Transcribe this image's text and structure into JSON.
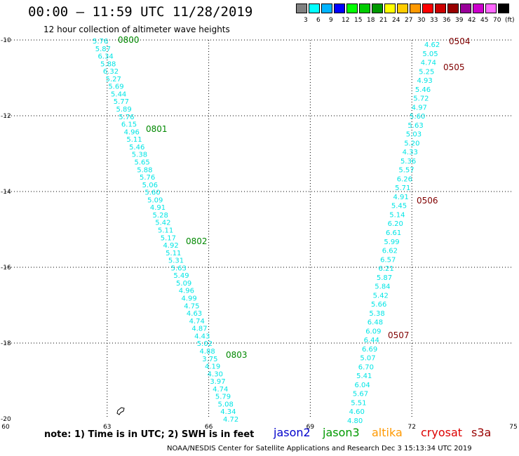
{
  "header": {
    "title": "00:00 – 11:59 UTC 11/28/2019",
    "subtitle": "12 hour collection of altimeter wave heights"
  },
  "legend": {
    "colors": [
      "#808080",
      "#00ffff",
      "#00b4ff",
      "#0000ff",
      "#00ff00",
      "#00cc00",
      "#009900",
      "#ffff00",
      "#ffcc00",
      "#ff9900",
      "#ff0000",
      "#cc0000",
      "#990000",
      "#990099",
      "#cc00cc",
      "#ff66ff",
      "#000000"
    ],
    "labels": [
      "3",
      "6",
      "9",
      "12",
      "15",
      "18",
      "21",
      "24",
      "27",
      "30",
      "33",
      "36",
      "39",
      "42",
      "45",
      "70"
    ],
    "unit": "(ft)"
  },
  "axes": {
    "lon_ticks": [
      "60",
      "63",
      "66",
      "69",
      "72",
      "75"
    ],
    "lat_ticks": [
      "-10",
      "-12",
      "-14",
      "-16",
      "-18",
      "-20"
    ]
  },
  "tracks": [
    {
      "color": "#00e5e5",
      "values": [
        "5.76",
        "5.87",
        "6.34",
        "5.88",
        "6.32",
        "5.27",
        "5.69",
        "5.44",
        "5.77",
        "5.89",
        "5.76",
        "6.15",
        "4.96",
        "5.11",
        "5.46",
        "5.38",
        "5.65",
        "5.88",
        "5.76",
        "5.06",
        "5.60",
        "5.09",
        "4.91",
        "5.28",
        "5.42",
        "5.11",
        "5.17",
        "4.92",
        "5.11",
        "5.31",
        "5.63",
        "5.49",
        "5.09",
        "4.96",
        "4.99",
        "4.75",
        "4.63",
        "4.74",
        "4.87",
        "4.43",
        "5.02",
        "4.88",
        "3.75",
        "4.19",
        "4.30",
        "3.97",
        "4.74",
        "5.79",
        "5.08",
        "4.34",
        "4.72"
      ]
    },
    {
      "color": "#00e5e5",
      "values": [
        "4.62",
        "5.05",
        "4.74",
        "5.25",
        "4.93",
        "5.46",
        "5.72",
        "4.97",
        "5.60",
        "5.63",
        "5.03",
        "5.20",
        "4.33",
        "5.36",
        "5.57",
        "6.26",
        "5.71",
        "4.91",
        "5.45",
        "5.14",
        "6.20",
        "6.61",
        "5.99",
        "6.62",
        "6.57",
        "6.21",
        "5.87",
        "5.84",
        "5.42",
        "5.66",
        "5.38",
        "6.48",
        "6.09",
        "6.44",
        "6.69",
        "5.07",
        "6.70",
        "5.41",
        "6.04",
        "5.67",
        "5.51",
        "4.60",
        "4.80"
      ]
    }
  ],
  "time_labels": [
    {
      "text": "0800",
      "color": "#008800"
    },
    {
      "text": "0801",
      "color": "#008800"
    },
    {
      "text": "0802",
      "color": "#008800"
    },
    {
      "text": "0803",
      "color": "#008800"
    },
    {
      "text": "0504",
      "color": "#800000"
    },
    {
      "text": "0505",
      "color": "#800000"
    },
    {
      "text": "0506",
      "color": "#800000"
    },
    {
      "text": "0507",
      "color": "#800000"
    }
  ],
  "footer": {
    "note": "note:  1) Time is in UTC;  2) SWH is in feet",
    "satellites": [
      {
        "name": "jason2",
        "color": "#0000cc"
      },
      {
        "name": "jason3",
        "color": "#009900"
      },
      {
        "name": "altika",
        "color": "#ff9900"
      },
      {
        "name": "cryosat",
        "color": "#dd0000"
      },
      {
        "name": "s3a",
        "color": "#990000"
      }
    ],
    "credit": "NOAA/NESDIS Center for Satellite Applications and Research     Dec  3 15:13:34 UTC 2019"
  }
}
